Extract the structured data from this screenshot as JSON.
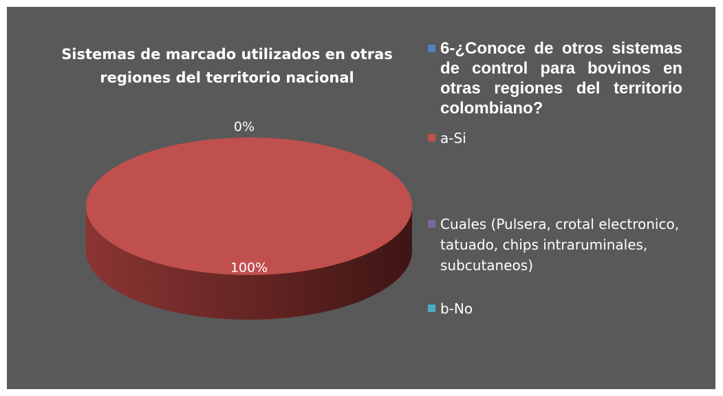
{
  "chart_data": {
    "type": "pie3d",
    "title": "Sistemas de marcado utilizados en otras regiones del territorio nacional",
    "categories": [
      "6-¿Conoce de otros sistemas de control para bovinos en otras regiones del territorio colombiano?",
      "a-Si",
      "Cuales (Pulsera, crotal electronico, tatuado, chips intraruminales, subcutaneos)",
      "b-No"
    ],
    "values": [
      0,
      100,
      0,
      0
    ],
    "value_labels": [
      null,
      "100%",
      null,
      "0%"
    ],
    "colors": [
      "#4f81bd",
      "#c0504d",
      "#8064a2",
      "#4bacc6"
    ],
    "legend": "right"
  }
}
